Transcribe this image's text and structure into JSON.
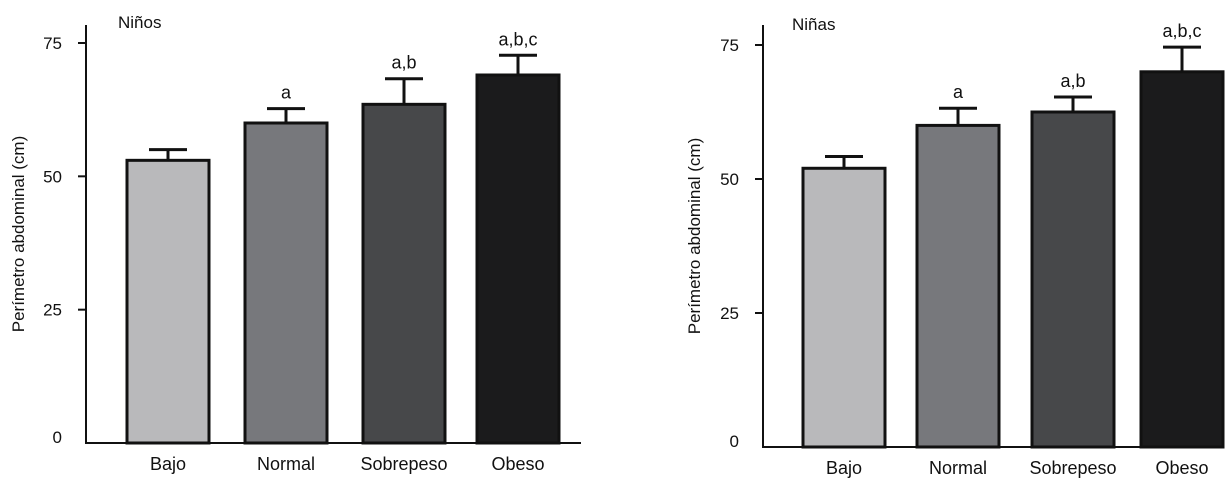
{
  "chart_data": [
    {
      "type": "bar",
      "title": "Niños",
      "xlabel": "",
      "ylabel": "Perímetro abdominal (cm)",
      "ylim": [
        0,
        75
      ],
      "yticks": [
        "0",
        "25",
        "50",
        "75"
      ],
      "categories": [
        "Bajo",
        "Normal",
        "Sobrepeso",
        "Obeso"
      ],
      "values": [
        53,
        60,
        63.5,
        69
      ],
      "errors": [
        2,
        2.7,
        4.8,
        3.7
      ],
      "annotations": [
        "",
        "a",
        "a,b",
        "a,b,c"
      ],
      "bar_colors": [
        "#b9b9bb",
        "#77787c",
        "#47484a",
        "#1b1b1c"
      ],
      "grid": false,
      "legend": "none"
    },
    {
      "type": "bar",
      "title": "Niñas",
      "xlabel": "",
      "ylabel": "Perímetro abdominal (cm)",
      "ylim": [
        0,
        75
      ],
      "yticks": [
        "0",
        "25",
        "50",
        "75"
      ],
      "categories": [
        "Bajo",
        "Normal",
        "Sobrepeso",
        "Obeso"
      ],
      "values": [
        52,
        60,
        62.5,
        70
      ],
      "errors": [
        2.2,
        3.2,
        2.8,
        4.6
      ],
      "annotations": [
        "",
        "a",
        "a,b",
        "a,b,c"
      ],
      "bar_colors": [
        "#b9b9bb",
        "#77787c",
        "#47484a",
        "#1b1b1c"
      ],
      "grid": false,
      "legend": "none"
    }
  ]
}
